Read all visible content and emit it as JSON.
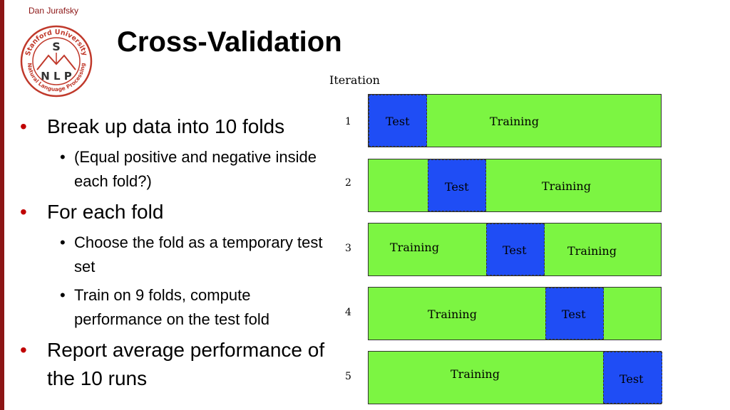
{
  "header": {
    "author": "Dan Jurafsky",
    "title": "Cross-Validation"
  },
  "logo": {
    "ring_text_top": "Stanford University",
    "ring_text_bottom": "Natural Language Processing",
    "letters": [
      "S",
      "N",
      "L",
      "P"
    ],
    "color": "#c0392b"
  },
  "bullets": [
    {
      "level": 1,
      "text": "Break up data into 10 folds"
    },
    {
      "level": 2,
      "text": "(Equal positive and negative inside each fold?)"
    },
    {
      "level": 1,
      "text": "For each fold"
    },
    {
      "level": 2,
      "text": "Choose the fold as a temporary test set"
    },
    {
      "level": 2,
      "text": "Train on 9 folds, compute performance on the test fold"
    },
    {
      "level": 1,
      "text": "Report average performance of the 10 runs"
    }
  ],
  "diagram": {
    "iteration_label": "Iteration",
    "test_label": "Test",
    "training_label": "Training",
    "rows": [
      {
        "num": "1",
        "test_fold": 1
      },
      {
        "num": "2",
        "test_fold": 2
      },
      {
        "num": "3",
        "test_fold": 3
      },
      {
        "num": "4",
        "test_fold": 4
      },
      {
        "num": "5",
        "test_fold": 5
      }
    ],
    "colors": {
      "training": "#7cf542",
      "test": "#1f4df5"
    }
  }
}
